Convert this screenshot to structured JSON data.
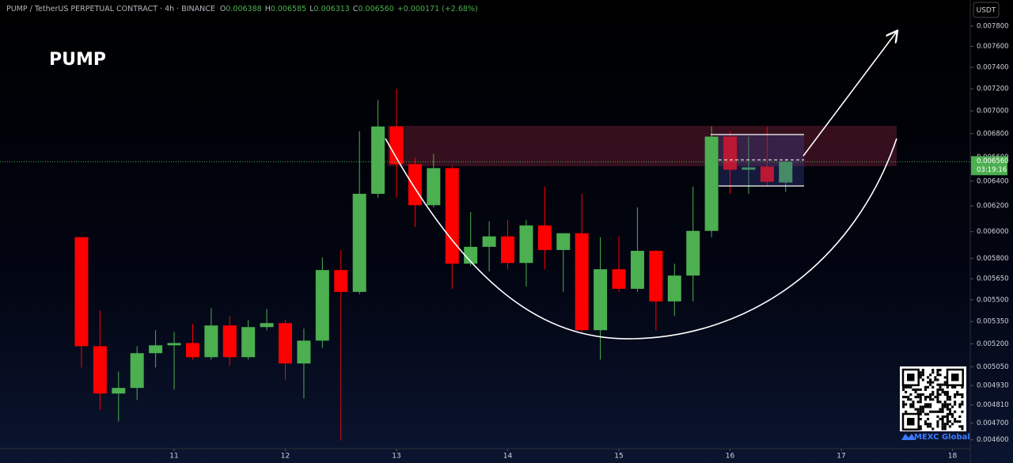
{
  "chart_data": {
    "type": "candlestick",
    "title": "PUMP",
    "subtitle": "PUMP / TetherUS PERPETUAL CONTRACT · 4h · BINANCE",
    "ohlc": [
      {
        "label": "O",
        "value": "0.006388"
      },
      {
        "label": "H",
        "value": "0.006585"
      },
      {
        "label": "L",
        "value": "0.006313"
      },
      {
        "label": "C",
        "value": "0.006560"
      }
    ],
    "change": "+0.000171 (+2.68%)",
    "currency": "USDT",
    "watermark": "MEXC Global",
    "up_color": "#4caf50",
    "down_color": "#ff0000",
    "log_scale": true,
    "x": [
      10.1667,
      10.3333,
      10.5,
      10.6667,
      10.8333,
      11,
      11.1667,
      11.3333,
      11.5,
      11.6667,
      11.8333,
      12,
      12.1667,
      12.3333,
      12.5,
      12.6667,
      12.8333,
      13,
      13.1667,
      13.3333,
      13.5,
      13.6667,
      13.8333,
      14,
      14.1667,
      14.3333,
      14.5,
      14.6667,
      14.8333,
      15,
      15.1667,
      15.3333,
      15.5,
      15.6667,
      15.8333,
      16,
      16.1667,
      16.3333,
      16.5
    ],
    "open": [
      0.005958,
      0.005184,
      0.00488,
      0.004915,
      0.005138,
      0.00519,
      0.005205,
      0.005112,
      0.005323,
      0.005112,
      0.005312,
      0.005339,
      0.005071,
      0.005221,
      0.005713,
      0.005556,
      0.006297,
      0.006862,
      0.00654,
      0.006206,
      0.006507,
      0.00576,
      0.005885,
      0.005964,
      0.005765,
      0.006048,
      0.005861,
      0.005988,
      0.005291,
      0.005719,
      0.005578,
      0.005855,
      0.005489,
      0.005673,
      0.006006,
      0.006774,
      0.006493,
      0.00652,
      0.006388
    ],
    "high": [
      0.005958,
      0.005425,
      0.005019,
      0.005184,
      0.005291,
      0.00528,
      0.005334,
      0.005441,
      0.005388,
      0.005361,
      0.005436,
      0.005361,
      0.005302,
      0.005806,
      0.005861,
      0.006821,
      0.007097,
      0.0072,
      0.006593,
      0.006626,
      0.006527,
      0.006152,
      0.006079,
      0.006091,
      0.006091,
      0.006355,
      0.005988,
      0.006297,
      0.005958,
      0.005964,
      0.006188,
      0.005861,
      0.00576,
      0.006355,
      0.006862,
      0.006821,
      0.006774,
      0.006862,
      0.006585
    ],
    "low": [
      0.005045,
      0.004778,
      0.004709,
      0.00484,
      0.005045,
      0.004905,
      0.005096,
      0.005096,
      0.005055,
      0.005096,
      0.005291,
      0.004966,
      0.00485,
      0.005174,
      0.004596,
      0.005539,
      0.006265,
      0.006265,
      0.006036,
      0.006188,
      0.005578,
      0.005742,
      0.005702,
      0.005719,
      0.005594,
      0.005719,
      0.005556,
      0.00528,
      0.005096,
      0.005556,
      0.005556,
      0.005291,
      0.005388,
      0.005489,
      0.005958,
      0.006297,
      0.006297,
      0.006355,
      0.006313
    ],
    "close": [
      0.005184,
      0.00488,
      0.004915,
      0.005138,
      0.00519,
      0.005205,
      0.005112,
      0.005323,
      0.005112,
      0.005312,
      0.005339,
      0.005071,
      0.005221,
      0.005713,
      0.005556,
      0.006297,
      0.006862,
      0.00654,
      0.006206,
      0.006507,
      0.00576,
      0.005885,
      0.005964,
      0.005765,
      0.006048,
      0.005861,
      0.005988,
      0.005291,
      0.005719,
      0.005578,
      0.005855,
      0.005489,
      0.005673,
      0.006006,
      0.006774,
      0.006493,
      0.006513,
      0.006394,
      0.00656
    ],
    "xlim": [
      9.434,
      18.16
    ],
    "xticks": [
      11,
      12,
      13,
      14,
      15,
      16,
      17,
      18
    ],
    "ylim": [
      0.004548,
      0.008064
    ],
    "yticks": [
      {
        "value": 0.0078,
        "label": "0.007800"
      },
      {
        "value": 0.0076,
        "label": "0.007600"
      },
      {
        "value": 0.0074,
        "label": "0.007400"
      },
      {
        "value": 0.0072,
        "label": "0.007200"
      },
      {
        "value": 0.007,
        "label": "0.007000"
      },
      {
        "value": 0.0068,
        "label": "0.006800"
      },
      {
        "value": 0.0066,
        "label": "0.006600"
      },
      {
        "value": 0.0064,
        "label": "0.006400"
      },
      {
        "value": 0.0062,
        "label": "0.006200"
      },
      {
        "value": 0.006,
        "label": "0.006000"
      },
      {
        "value": 0.0058,
        "label": "0.005800"
      },
      {
        "value": 0.00565,
        "label": "0.005650"
      },
      {
        "value": 0.0055,
        "label": "0.005500"
      },
      {
        "value": 0.00535,
        "label": "0.005350"
      },
      {
        "value": 0.0052,
        "label": "0.005200"
      },
      {
        "value": 0.00505,
        "label": "0.005050"
      },
      {
        "value": 0.00493,
        "label": "0.004930"
      },
      {
        "value": 0.00481,
        "label": "0.004810"
      },
      {
        "value": 0.0047,
        "label": "0.004700"
      },
      {
        "value": 0.0046,
        "label": "0.004600"
      }
    ],
    "last_price": {
      "value": 0.00656,
      "label": "0.006560"
    },
    "countdown": "03:19:16"
  }
}
